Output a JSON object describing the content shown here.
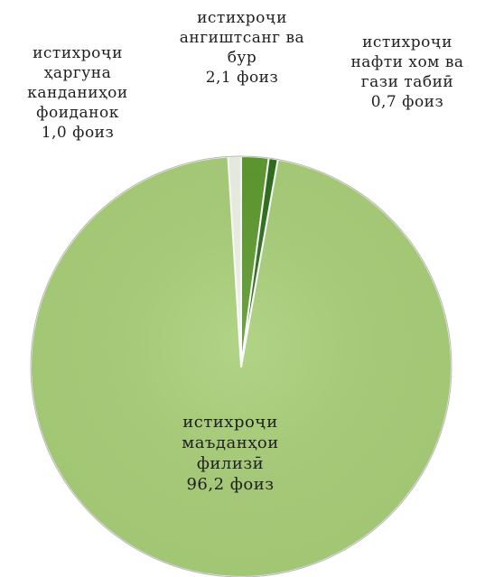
{
  "chart_data": {
    "type": "pie",
    "slices": [
      {
        "label_lines": [
          "истихроҷи",
          "ҳаргуна",
          "канданиҳои",
          "фоиданок"
        ],
        "value": 1.0,
        "value_text": "1,0 фоиз",
        "color": "#eef3e6"
      },
      {
        "label_lines": [
          "истихроҷи",
          "ангиштсанг ва",
          "бур"
        ],
        "value": 2.1,
        "value_text": "2,1 фоиз",
        "color": "#5e9a2f"
      },
      {
        "label_lines": [
          "истихроҷи",
          "нафти хом ва",
          "гази табиӣ"
        ],
        "value": 0.7,
        "value_text": "0,7 фоиз",
        "color": "#2f6e1c"
      },
      {
        "label_lines": [
          "истихроҷи",
          "маъданҳои",
          "филизӣ"
        ],
        "value": 96.2,
        "value_text": "96,2 фоиз",
        "color": "#a9cf79"
      }
    ],
    "border_color": "#ffffff",
    "edge_color": "#b7b7b7"
  }
}
